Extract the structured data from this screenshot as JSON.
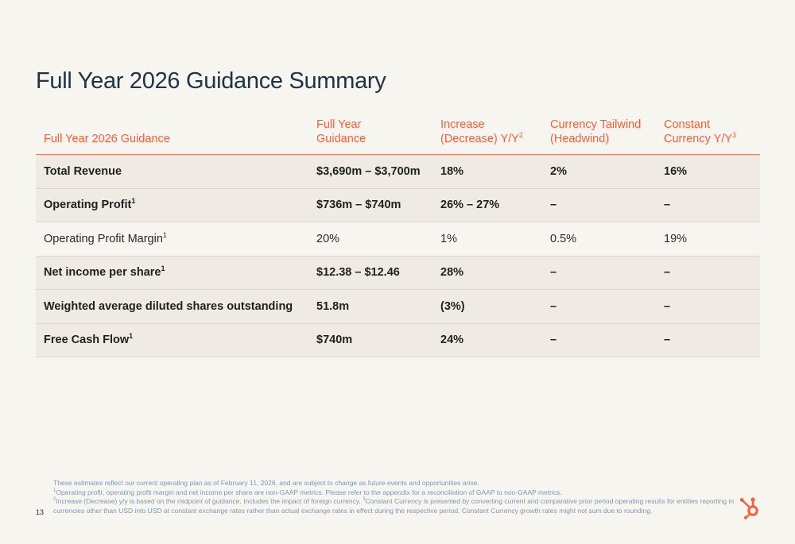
{
  "title": "Full Year 2026 Guidance Summary",
  "table": {
    "headers": [
      {
        "text": "Full Year 2026 Guidance",
        "sup": ""
      },
      {
        "text": "Full Year Guidance",
        "sup": ""
      },
      {
        "text": "Increase (Decrease) Y/Y",
        "sup": "2"
      },
      {
        "text": "Currency Tailwind (Headwind)",
        "sup": ""
      },
      {
        "text": "Constant Currency Y/Y",
        "sup": "3"
      }
    ],
    "rows": [
      {
        "label": "Total Revenue",
        "sup": "",
        "guidance": "$3,690m – $3,700m",
        "change": "18%",
        "currency": "2%",
        "constant": "16%"
      },
      {
        "label": "Operating Profit",
        "sup": "1",
        "guidance": "$736m – $740m",
        "change": "26% – 27%",
        "currency": "–",
        "constant": "–"
      },
      {
        "label": "Operating Profit Margin",
        "sup": "1",
        "guidance": "20%",
        "change": "1%",
        "currency": "0.5%",
        "constant": "19%"
      },
      {
        "label": "Net income per share",
        "sup": "1",
        "guidance": "$12.38 – $12.46",
        "change": "28%",
        "currency": "–",
        "constant": "–"
      },
      {
        "label": "Weighted average diluted shares outstanding",
        "sup": "",
        "guidance": "51.8m",
        "change": "(3%)",
        "currency": "–",
        "constant": "–"
      },
      {
        "label": "Free Cash Flow",
        "sup": "1",
        "guidance": "$740m",
        "change": "24%",
        "currency": "–",
        "constant": "–"
      }
    ]
  },
  "footnotes": {
    "intro": "These estimates reflect our current operating plan as of February 11, 2026, and are subject to change as future events and opportunities arise.",
    "note1_sup": "1",
    "note1": "Operating profit, operating profit margin and net income per share are non-GAAP metrics. Please refer to the appendix for a reconciliation of GAAP to non-GAAP metrics.",
    "note2_sup": "2",
    "note2": "Increase (Decrease) y/y is based on the midpoint of guidance. Includes the impact of foreign currency.",
    "note3_sup": "3",
    "note3": "Constant Currency is presented by converting current and comparative prior period operating results for entities reporting in currencies other than USD into USD at constant exchange rates rather than actual exchange rates in effect during the respective period. Constant Currency growth rates might not sum due to rounding."
  },
  "page_number": "13",
  "colors": {
    "accent": "#ff5c35",
    "title": "#213343",
    "footnote": "#7c98b6",
    "row_shade": "#efebe4",
    "background": "#f7f5f0"
  },
  "logo_icon": "hubspot-sprocket-icon"
}
